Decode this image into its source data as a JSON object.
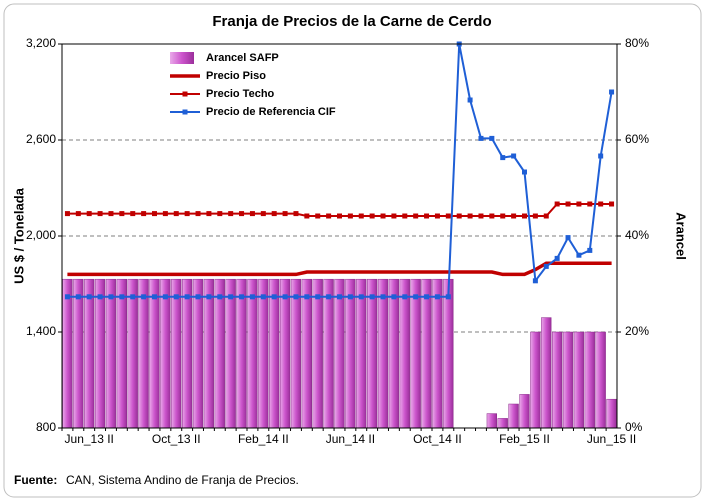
{
  "chart_data": {
    "type": "combo",
    "title": "Franja de Precios de la Carne de Cerdo",
    "y_label": "US $ / Tonelada",
    "y2_label": "Arancel",
    "source_label": "Fuente:",
    "source_text": "CAN, Sistema Andino de Franja de Precios.",
    "categories": [
      null,
      null,
      "Jun_13 II",
      null,
      null,
      null,
      null,
      null,
      null,
      null,
      "Oct_13 II",
      null,
      null,
      null,
      null,
      null,
      null,
      null,
      "Feb_14 II",
      null,
      null,
      null,
      null,
      null,
      null,
      null,
      "Jun_14 II",
      null,
      null,
      null,
      null,
      null,
      null,
      null,
      "Oct_14 II",
      null,
      null,
      null,
      null,
      null,
      null,
      null,
      "Feb_15 II",
      null,
      null,
      null,
      null,
      null,
      null,
      null,
      "Jun_15 II"
    ],
    "ylim": [
      800,
      3200
    ],
    "yticks": [
      800,
      {
        "value": 1400,
        "label": "1,400"
      },
      {
        "value": 2000,
        "label": "2,000"
      },
      {
        "value": 2600,
        "label": "2,600"
      },
      {
        "value": 3200,
        "label": "3,200"
      }
    ],
    "y2lim": [
      0,
      80
    ],
    "y2ticks": [
      {
        "value": 0,
        "label": "0%"
      },
      {
        "value": 20,
        "label": "20%"
      },
      {
        "value": 40,
        "label": "40%"
      },
      {
        "value": 60,
        "label": "60%"
      },
      {
        "value": 80,
        "label": "80%"
      }
    ],
    "grid": true,
    "series": [
      {
        "name": "Arancel SAFP",
        "type": "bar",
        "axis": "y2",
        "color": "#cc55cc",
        "values": [
          31,
          31,
          31,
          31,
          31,
          31,
          31,
          31,
          31,
          31,
          31,
          31,
          31,
          31,
          31,
          31,
          31,
          31,
          31,
          31,
          31,
          31,
          31,
          31,
          31,
          31,
          31,
          31,
          31,
          31,
          31,
          31,
          31,
          31,
          31,
          31,
          0,
          0,
          0,
          3,
          2,
          5,
          7,
          20,
          23,
          20,
          20,
          20,
          20,
          20,
          6
        ]
      },
      {
        "name": "Precio Piso",
        "type": "line",
        "color": "#c00000",
        "values": [
          1760,
          1760,
          1760,
          1760,
          1760,
          1760,
          1760,
          1760,
          1760,
          1760,
          1760,
          1760,
          1760,
          1760,
          1760,
          1760,
          1760,
          1760,
          1760,
          1760,
          1760,
          1760,
          1775,
          1775,
          1775,
          1775,
          1775,
          1775,
          1775,
          1775,
          1775,
          1775,
          1775,
          1775,
          1775,
          1775,
          1775,
          1775,
          1775,
          1775,
          1760,
          1760,
          1760,
          1790,
          1830,
          1830,
          1830,
          1830,
          1830,
          1830,
          1830
        ]
      },
      {
        "name": "Precio Techo",
        "type": "line",
        "marker": true,
        "color": "#c00000",
        "values": [
          2140,
          2140,
          2140,
          2140,
          2140,
          2140,
          2140,
          2140,
          2140,
          2140,
          2140,
          2140,
          2140,
          2140,
          2140,
          2140,
          2140,
          2140,
          2140,
          2140,
          2140,
          2140,
          2125,
          2125,
          2125,
          2125,
          2125,
          2125,
          2125,
          2125,
          2125,
          2125,
          2125,
          2125,
          2125,
          2125,
          2125,
          2125,
          2125,
          2125,
          2125,
          2125,
          2125,
          2125,
          2125,
          2200,
          2200,
          2200,
          2200,
          2200,
          2200
        ]
      },
      {
        "name": "Precio de Referencia CIF",
        "type": "line",
        "marker": true,
        "color": "#1f5fd6",
        "values": [
          1620,
          1620,
          1620,
          1620,
          1620,
          1620,
          1620,
          1620,
          1620,
          1620,
          1620,
          1620,
          1620,
          1620,
          1620,
          1620,
          1620,
          1620,
          1620,
          1620,
          1620,
          1620,
          1620,
          1620,
          1620,
          1620,
          1620,
          1620,
          1620,
          1620,
          1620,
          1620,
          1620,
          1620,
          1620,
          1620,
          3200,
          2850,
          2610,
          2610,
          2490,
          2500,
          2400,
          1720,
          1810,
          1860,
          1990,
          1880,
          1910,
          2500,
          2900
        ]
      }
    ]
  }
}
